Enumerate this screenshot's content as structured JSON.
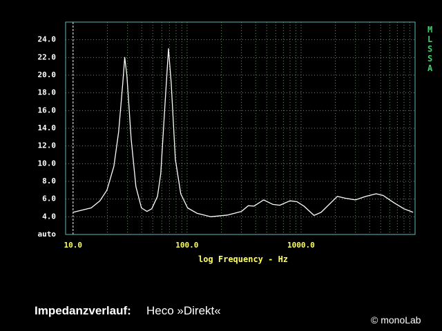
{
  "chart_data": {
    "type": "line",
    "x_label": "log Frequency - Hz",
    "xscale": "log",
    "xlim": [
      8.6,
      10000
    ],
    "ylim": [
      2,
      26
    ],
    "xticks": [
      {
        "value": 10,
        "label": "10.0"
      },
      {
        "value": 100,
        "label": "100.0"
      },
      {
        "value": 1000,
        "label": "1000.0"
      }
    ],
    "xgrid_minor": [
      20,
      30,
      40,
      50,
      60,
      70,
      80,
      90,
      200,
      300,
      400,
      500,
      600,
      700,
      800,
      900,
      2000,
      3000,
      4000,
      5000,
      6000,
      7000,
      8000,
      9000
    ],
    "yticks": [
      {
        "value": 2,
        "label": "auto"
      },
      {
        "value": 4,
        "label": "4.0"
      },
      {
        "value": 6,
        "label": "6.0"
      },
      {
        "value": 8,
        "label": "8.0"
      },
      {
        "value": 10,
        "label": "10.0"
      },
      {
        "value": 12,
        "label": "12.0"
      },
      {
        "value": 14,
        "label": "14.0"
      },
      {
        "value": 16,
        "label": "16.0"
      },
      {
        "value": 18,
        "label": "18.0"
      },
      {
        "value": 20,
        "label": "20.0"
      },
      {
        "value": 22,
        "label": "22.0"
      },
      {
        "value": 24,
        "label": "24.0"
      }
    ],
    "grid": true,
    "frame_color": "#5fb8b8",
    "grid_color": "#6f8f6f",
    "series": [
      {
        "color": "#ffffff",
        "x": [
          10,
          14.4,
          17.2,
          19.8,
          22.8,
          25.1,
          27.3,
          28.4,
          29.7,
          32.3,
          35.6,
          39.8,
          44.5,
          49,
          55,
          58.8,
          64,
          68.7,
          72.6,
          78.9,
          88,
          101,
          122,
          161,
          228,
          300,
          345,
          386,
          470,
          566,
          650,
          800,
          920,
          1060,
          1300,
          1500,
          2080,
          2430,
          3000,
          3700,
          4560,
          5260,
          6500,
          8000,
          9600
        ],
        "values": [
          4.5,
          5.0,
          5.8,
          7.0,
          9.7,
          13.6,
          19.1,
          22.0,
          19.9,
          12.8,
          7.4,
          5.0,
          4.6,
          4.9,
          6.3,
          8.9,
          16.7,
          23.0,
          19.1,
          10.5,
          6.6,
          5.0,
          4.4,
          4.0,
          4.2,
          4.6,
          5.25,
          5.2,
          5.9,
          5.4,
          5.3,
          5.8,
          5.7,
          5.2,
          4.15,
          4.5,
          6.3,
          6.1,
          5.9,
          6.3,
          6.6,
          6.4,
          5.6,
          4.9,
          4.5
        ]
      }
    ]
  },
  "badge": "MLSSA",
  "footer": {
    "label": "Impedanzverlauf:",
    "text": "Heco »Direkt«"
  },
  "watermark": "© monoLab"
}
